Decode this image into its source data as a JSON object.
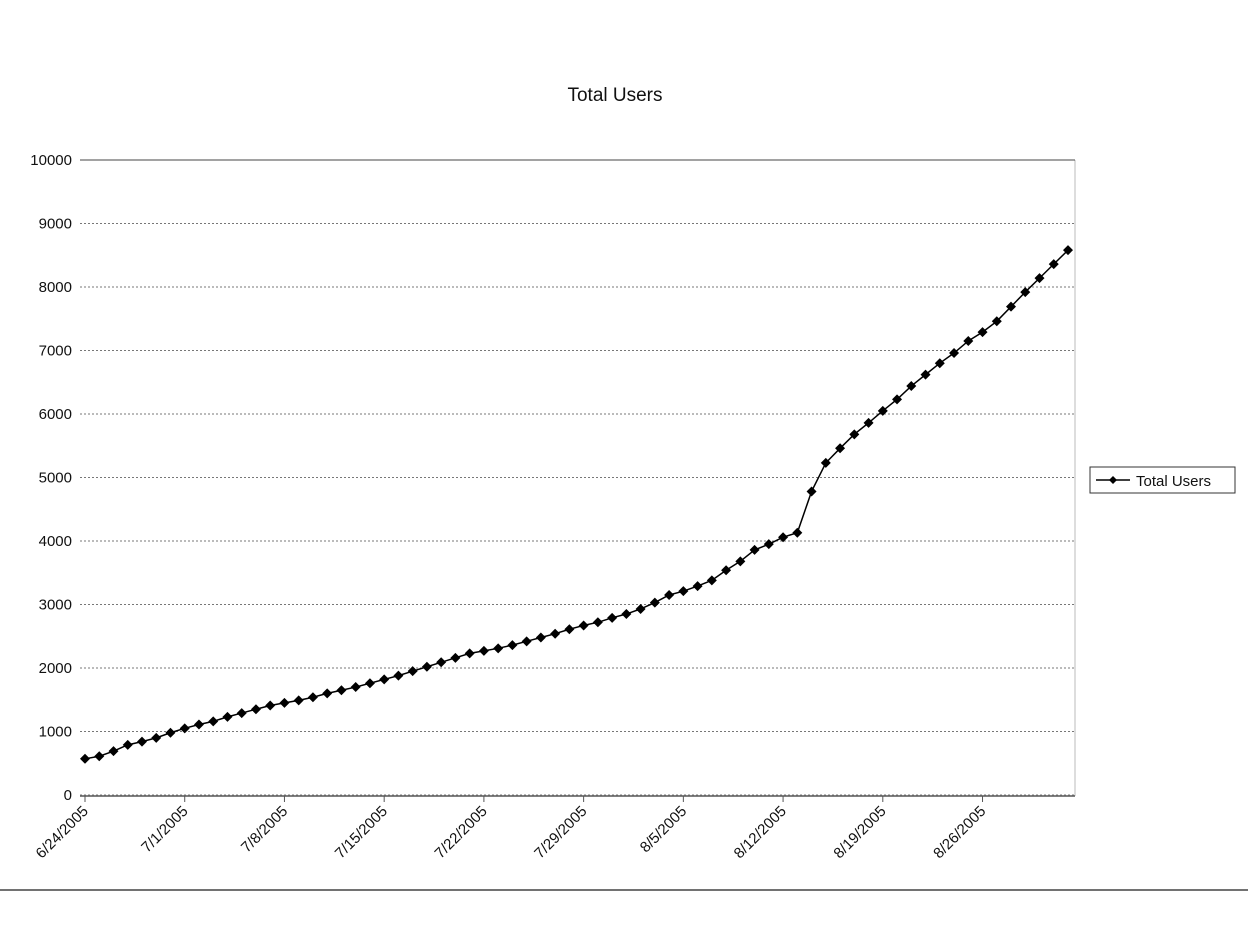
{
  "chart_data": {
    "type": "line",
    "title": "Total Users",
    "x": [
      "2005-06-24",
      "2005-06-25",
      "2005-06-26",
      "2005-06-27",
      "2005-06-28",
      "2005-06-29",
      "2005-06-30",
      "2005-07-01",
      "2005-07-02",
      "2005-07-03",
      "2005-07-04",
      "2005-07-05",
      "2005-07-06",
      "2005-07-07",
      "2005-07-08",
      "2005-07-09",
      "2005-07-10",
      "2005-07-11",
      "2005-07-12",
      "2005-07-13",
      "2005-07-14",
      "2005-07-15",
      "2005-07-16",
      "2005-07-17",
      "2005-07-18",
      "2005-07-19",
      "2005-07-20",
      "2005-07-21",
      "2005-07-22",
      "2005-07-23",
      "2005-07-24",
      "2005-07-25",
      "2005-07-26",
      "2005-07-27",
      "2005-07-28",
      "2005-07-29",
      "2005-07-30",
      "2005-07-31",
      "2005-08-01",
      "2005-08-02",
      "2005-08-03",
      "2005-08-04",
      "2005-08-05",
      "2005-08-06",
      "2005-08-07",
      "2005-08-08",
      "2005-08-09",
      "2005-08-10",
      "2005-08-11",
      "2005-08-12",
      "2005-08-13",
      "2005-08-14",
      "2005-08-15",
      "2005-08-16",
      "2005-08-17",
      "2005-08-18",
      "2005-08-19",
      "2005-08-20",
      "2005-08-21",
      "2005-08-22",
      "2005-08-23",
      "2005-08-24",
      "2005-08-25",
      "2005-08-26",
      "2005-08-27",
      "2005-08-28",
      "2005-08-29",
      "2005-08-30",
      "2005-08-31",
      "2005-09-01"
    ],
    "series": [
      {
        "name": "Total Users",
        "color": "#000000",
        "values": [
          570,
          610,
          690,
          790,
          840,
          900,
          980,
          1050,
          1110,
          1160,
          1230,
          1290,
          1350,
          1410,
          1450,
          1490,
          1540,
          1600,
          1650,
          1700,
          1760,
          1820,
          1880,
          1950,
          2020,
          2090,
          2160,
          2230,
          2270,
          2310,
          2360,
          2420,
          2480,
          2540,
          2610,
          2670,
          2720,
          2790,
          2850,
          2930,
          3030,
          3150,
          3210,
          3290,
          3380,
          3540,
          3680,
          3860,
          3950,
          4060,
          4130,
          4780,
          5230,
          5460,
          5680,
          5860,
          6050,
          6230,
          6440,
          6620,
          6800,
          6960,
          7150,
          7290,
          7460,
          7690,
          7920,
          8140,
          8360,
          8580
        ]
      }
    ],
    "xlim": [
      "2005-06-24",
      "2005-09-01"
    ],
    "xticks": [
      {
        "value": "2005-06-24",
        "label": "6/24/2005"
      },
      {
        "value": "2005-07-01",
        "label": "7/1/2005"
      },
      {
        "value": "2005-07-08",
        "label": "7/8/2005"
      },
      {
        "value": "2005-07-15",
        "label": "7/15/2005"
      },
      {
        "value": "2005-07-22",
        "label": "7/22/2005"
      },
      {
        "value": "2005-07-29",
        "label": "7/29/2005"
      },
      {
        "value": "2005-08-05",
        "label": "8/5/2005"
      },
      {
        "value": "2005-08-12",
        "label": "8/12/2005"
      },
      {
        "value": "2005-08-19",
        "label": "8/19/2005"
      },
      {
        "value": "2005-08-26",
        "label": "8/26/2005"
      }
    ],
    "ylim": [
      0,
      10000
    ],
    "yticks": [
      0,
      1000,
      2000,
      3000,
      4000,
      5000,
      6000,
      7000,
      8000,
      9000,
      10000
    ],
    "grid": true,
    "legend": "right"
  }
}
